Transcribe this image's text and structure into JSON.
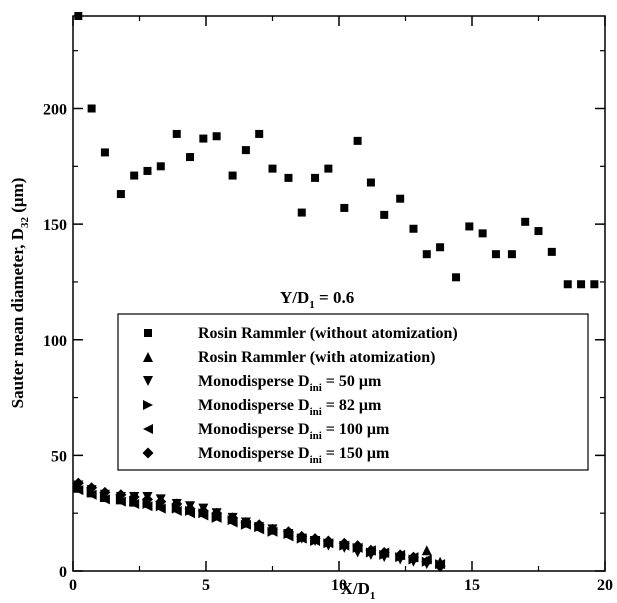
{
  "chart_data": {
    "type": "scatter",
    "xlabel": {
      "main": "X/D",
      "sub": "1"
    },
    "ylabel": {
      "main": "Sauter mean diameter, D",
      "sub": "32",
      "tail": " (μm)"
    },
    "xlim": [
      0,
      20
    ],
    "ylim": [
      0,
      240
    ],
    "xticks": [
      0,
      5,
      10,
      15,
      20
    ],
    "yticks": [
      0,
      50,
      100,
      150,
      200
    ],
    "grid": false,
    "legend_position": "center-left",
    "annotation": {
      "main": "Y/D",
      "sub": "1",
      "tail": " = 0.6"
    },
    "series": [
      {
        "name": {
          "main": "Rosin Rammler (without atomization)",
          "sub": "",
          "tail": ""
        },
        "marker": "square",
        "points": [
          [
            0.2,
            240
          ],
          [
            0.7,
            200
          ],
          [
            1.2,
            181
          ],
          [
            1.8,
            163
          ],
          [
            2.3,
            171
          ],
          [
            2.8,
            173
          ],
          [
            3.3,
            175
          ],
          [
            3.9,
            189
          ],
          [
            4.4,
            179
          ],
          [
            4.9,
            187
          ],
          [
            5.4,
            188
          ],
          [
            6.0,
            171
          ],
          [
            6.5,
            182
          ],
          [
            7.0,
            189
          ],
          [
            7.5,
            174
          ],
          [
            8.1,
            170
          ],
          [
            8.6,
            155
          ],
          [
            9.1,
            170
          ],
          [
            9.6,
            174
          ],
          [
            10.2,
            157
          ],
          [
            10.7,
            186
          ],
          [
            11.2,
            168
          ],
          [
            11.7,
            154
          ],
          [
            12.3,
            161
          ],
          [
            12.8,
            148
          ],
          [
            13.3,
            137
          ],
          [
            13.8,
            140
          ],
          [
            14.4,
            127
          ],
          [
            14.9,
            149
          ],
          [
            15.4,
            146
          ],
          [
            15.9,
            137
          ],
          [
            16.5,
            137
          ],
          [
            17.0,
            151
          ],
          [
            17.5,
            147
          ],
          [
            18.0,
            138
          ],
          [
            18.6,
            124
          ],
          [
            19.1,
            124
          ],
          [
            19.6,
            124
          ]
        ]
      },
      {
        "name": {
          "main": "Rosin Rammler (with atomization)",
          "sub": "",
          "tail": ""
        },
        "marker": "triangle-up",
        "points": [
          [
            0.2,
            36
          ],
          [
            0.7,
            34
          ],
          [
            1.2,
            32
          ],
          [
            1.8,
            31
          ],
          [
            2.3,
            30
          ],
          [
            2.8,
            30
          ],
          [
            3.3,
            29
          ],
          [
            3.9,
            28
          ],
          [
            4.4,
            27
          ],
          [
            4.9,
            26
          ],
          [
            5.4,
            24
          ],
          [
            6.0,
            23
          ],
          [
            6.5,
            21
          ],
          [
            7.0,
            20
          ],
          [
            7.5,
            18
          ],
          [
            8.1,
            17
          ],
          [
            8.6,
            15
          ],
          [
            9.1,
            14
          ],
          [
            9.6,
            13
          ],
          [
            10.2,
            12
          ],
          [
            10.7,
            11
          ],
          [
            11.2,
            9
          ],
          [
            11.7,
            8
          ],
          [
            12.3,
            7
          ],
          [
            12.8,
            6
          ],
          [
            13.3,
            9
          ],
          [
            13.8,
            4
          ]
        ]
      },
      {
        "name": {
          "main": "Monodisperse D",
          "sub": "ini",
          "tail": " = 50 μm"
        },
        "marker": "triangle-down",
        "points": [
          [
            0.2,
            37
          ],
          [
            0.7,
            35
          ],
          [
            1.2,
            33
          ],
          [
            1.8,
            32
          ],
          [
            2.3,
            32
          ],
          [
            2.8,
            32
          ],
          [
            3.3,
            31
          ],
          [
            3.9,
            29
          ],
          [
            4.4,
            28
          ],
          [
            4.9,
            27
          ],
          [
            5.4,
            25
          ],
          [
            6.0,
            23
          ],
          [
            6.5,
            21
          ],
          [
            7.0,
            19
          ],
          [
            7.5,
            18
          ],
          [
            8.1,
            16
          ],
          [
            8.6,
            14
          ],
          [
            9.1,
            13
          ],
          [
            9.6,
            11
          ],
          [
            10.2,
            10
          ],
          [
            10.7,
            8
          ],
          [
            11.2,
            7
          ],
          [
            11.7,
            6
          ],
          [
            12.3,
            5
          ],
          [
            12.8,
            4
          ],
          [
            13.3,
            3
          ],
          [
            13.8,
            2
          ]
        ]
      },
      {
        "name": {
          "main": "Monodisperse D",
          "sub": "ini",
          "tail": " = 82 μm"
        },
        "marker": "triangle-right",
        "points": [
          [
            0.2,
            36
          ],
          [
            0.7,
            34
          ],
          [
            1.2,
            32
          ],
          [
            1.8,
            31
          ],
          [
            2.3,
            30
          ],
          [
            2.8,
            29
          ],
          [
            3.3,
            28
          ],
          [
            3.9,
            27
          ],
          [
            4.4,
            26
          ],
          [
            4.9,
            25
          ],
          [
            5.4,
            23
          ],
          [
            6.0,
            22
          ],
          [
            6.5,
            20
          ],
          [
            7.0,
            19
          ],
          [
            7.5,
            17
          ],
          [
            8.1,
            16
          ],
          [
            8.6,
            14
          ],
          [
            9.1,
            13
          ],
          [
            9.6,
            12
          ],
          [
            10.2,
            11
          ],
          [
            10.7,
            10
          ],
          [
            11.2,
            8
          ],
          [
            11.7,
            7
          ],
          [
            12.3,
            6
          ],
          [
            12.8,
            5
          ],
          [
            13.3,
            4
          ],
          [
            13.8,
            3
          ]
        ]
      },
      {
        "name": {
          "main": "Monodisperse D",
          "sub": "ini",
          "tail": " = 100 μm"
        },
        "marker": "triangle-left",
        "points": [
          [
            0.2,
            35
          ],
          [
            0.7,
            33
          ],
          [
            1.2,
            31
          ],
          [
            1.8,
            30
          ],
          [
            2.3,
            29
          ],
          [
            2.8,
            28
          ],
          [
            3.3,
            27
          ],
          [
            3.9,
            26
          ],
          [
            4.4,
            25
          ],
          [
            4.9,
            24
          ],
          [
            5.4,
            23
          ],
          [
            6.0,
            21
          ],
          [
            6.5,
            20
          ],
          [
            7.0,
            18
          ],
          [
            7.5,
            17
          ],
          [
            8.1,
            15
          ],
          [
            8.6,
            14
          ],
          [
            9.1,
            13
          ],
          [
            9.6,
            12
          ],
          [
            10.2,
            11
          ],
          [
            10.7,
            10
          ],
          [
            11.2,
            9
          ],
          [
            11.7,
            8
          ],
          [
            12.3,
            7
          ],
          [
            12.8,
            6
          ],
          [
            13.3,
            5
          ],
          [
            13.8,
            3
          ]
        ]
      },
      {
        "name": {
          "main": "Monodisperse D",
          "sub": "ini",
          "tail": " = 150 μm"
        },
        "marker": "diamond",
        "points": [
          [
            0.2,
            38
          ],
          [
            0.7,
            36
          ],
          [
            1.2,
            34
          ],
          [
            1.8,
            33
          ],
          [
            2.3,
            32
          ],
          [
            2.8,
            31
          ],
          [
            3.3,
            30
          ],
          [
            3.9,
            29
          ],
          [
            4.4,
            27
          ],
          [
            4.9,
            26
          ],
          [
            5.4,
            25
          ],
          [
            6.0,
            23
          ],
          [
            6.5,
            21
          ],
          [
            7.0,
            20
          ],
          [
            7.5,
            18
          ],
          [
            8.1,
            17
          ],
          [
            8.6,
            15
          ],
          [
            9.1,
            14
          ],
          [
            9.6,
            13
          ],
          [
            10.2,
            12
          ],
          [
            10.7,
            11
          ],
          [
            11.2,
            9
          ],
          [
            11.7,
            8
          ],
          [
            12.3,
            7
          ],
          [
            12.8,
            6
          ],
          [
            13.3,
            4
          ],
          [
            13.8,
            2
          ]
        ]
      }
    ]
  }
}
